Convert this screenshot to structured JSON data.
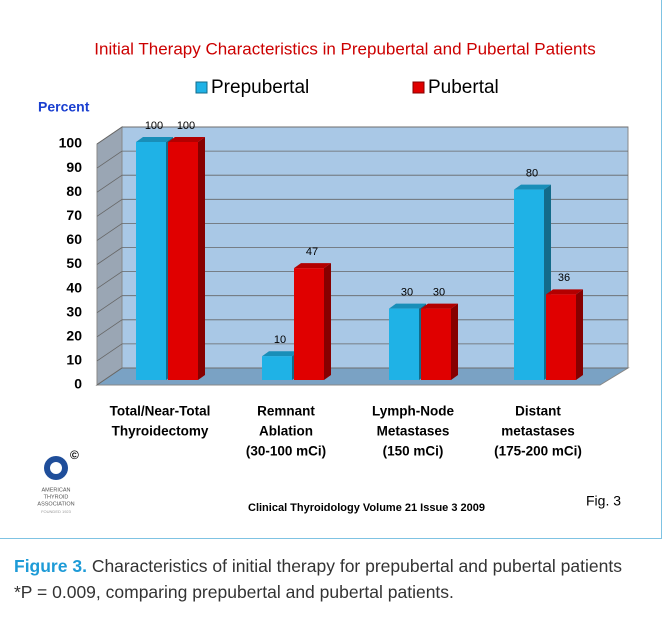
{
  "chart_data": {
    "type": "bar",
    "title": "Initial Therapy Characteristics in Prepubertal and Pubertal Patients",
    "y_label": "Percent",
    "categories": [
      [
        "Total/Near-Total",
        "Thyroidectomy"
      ],
      [
        "Remnant",
        "Ablation",
        "(30-100 mCi)"
      ],
      [
        "Lymph-Node",
        "Metastases",
        "(150 mCi)"
      ],
      [
        "Distant",
        "metastases",
        "(175-200 mCi)"
      ]
    ],
    "series": [
      {
        "name": "Prepubertal",
        "color": "#1fb2e6",
        "values": [
          100,
          10,
          30,
          80
        ]
      },
      {
        "name": "Pubertal",
        "color": "#e00000",
        "values": [
          100,
          47,
          30,
          36
        ]
      }
    ],
    "ylim": [
      0,
      100
    ],
    "yticks": [
      0,
      10,
      20,
      30,
      40,
      50,
      60,
      70,
      80,
      90,
      100
    ],
    "grid": true
  },
  "figure": {
    "source": "Clinical Thyroidology Volume 21 Issue 3 2009",
    "fig_label": "Fig. 3",
    "logo": {
      "lines": [
        "AMERICAN",
        "THYROID",
        "ASSOCIATION"
      ],
      "founded": "FOUNDED 1923",
      "mark": "©"
    },
    "caption_label": "Figure 3.",
    "caption_text": "Characteristics of initial therapy for prepubertal and pubertal patients *P = 0.009, comparing prepubertal and pubertal patients."
  }
}
